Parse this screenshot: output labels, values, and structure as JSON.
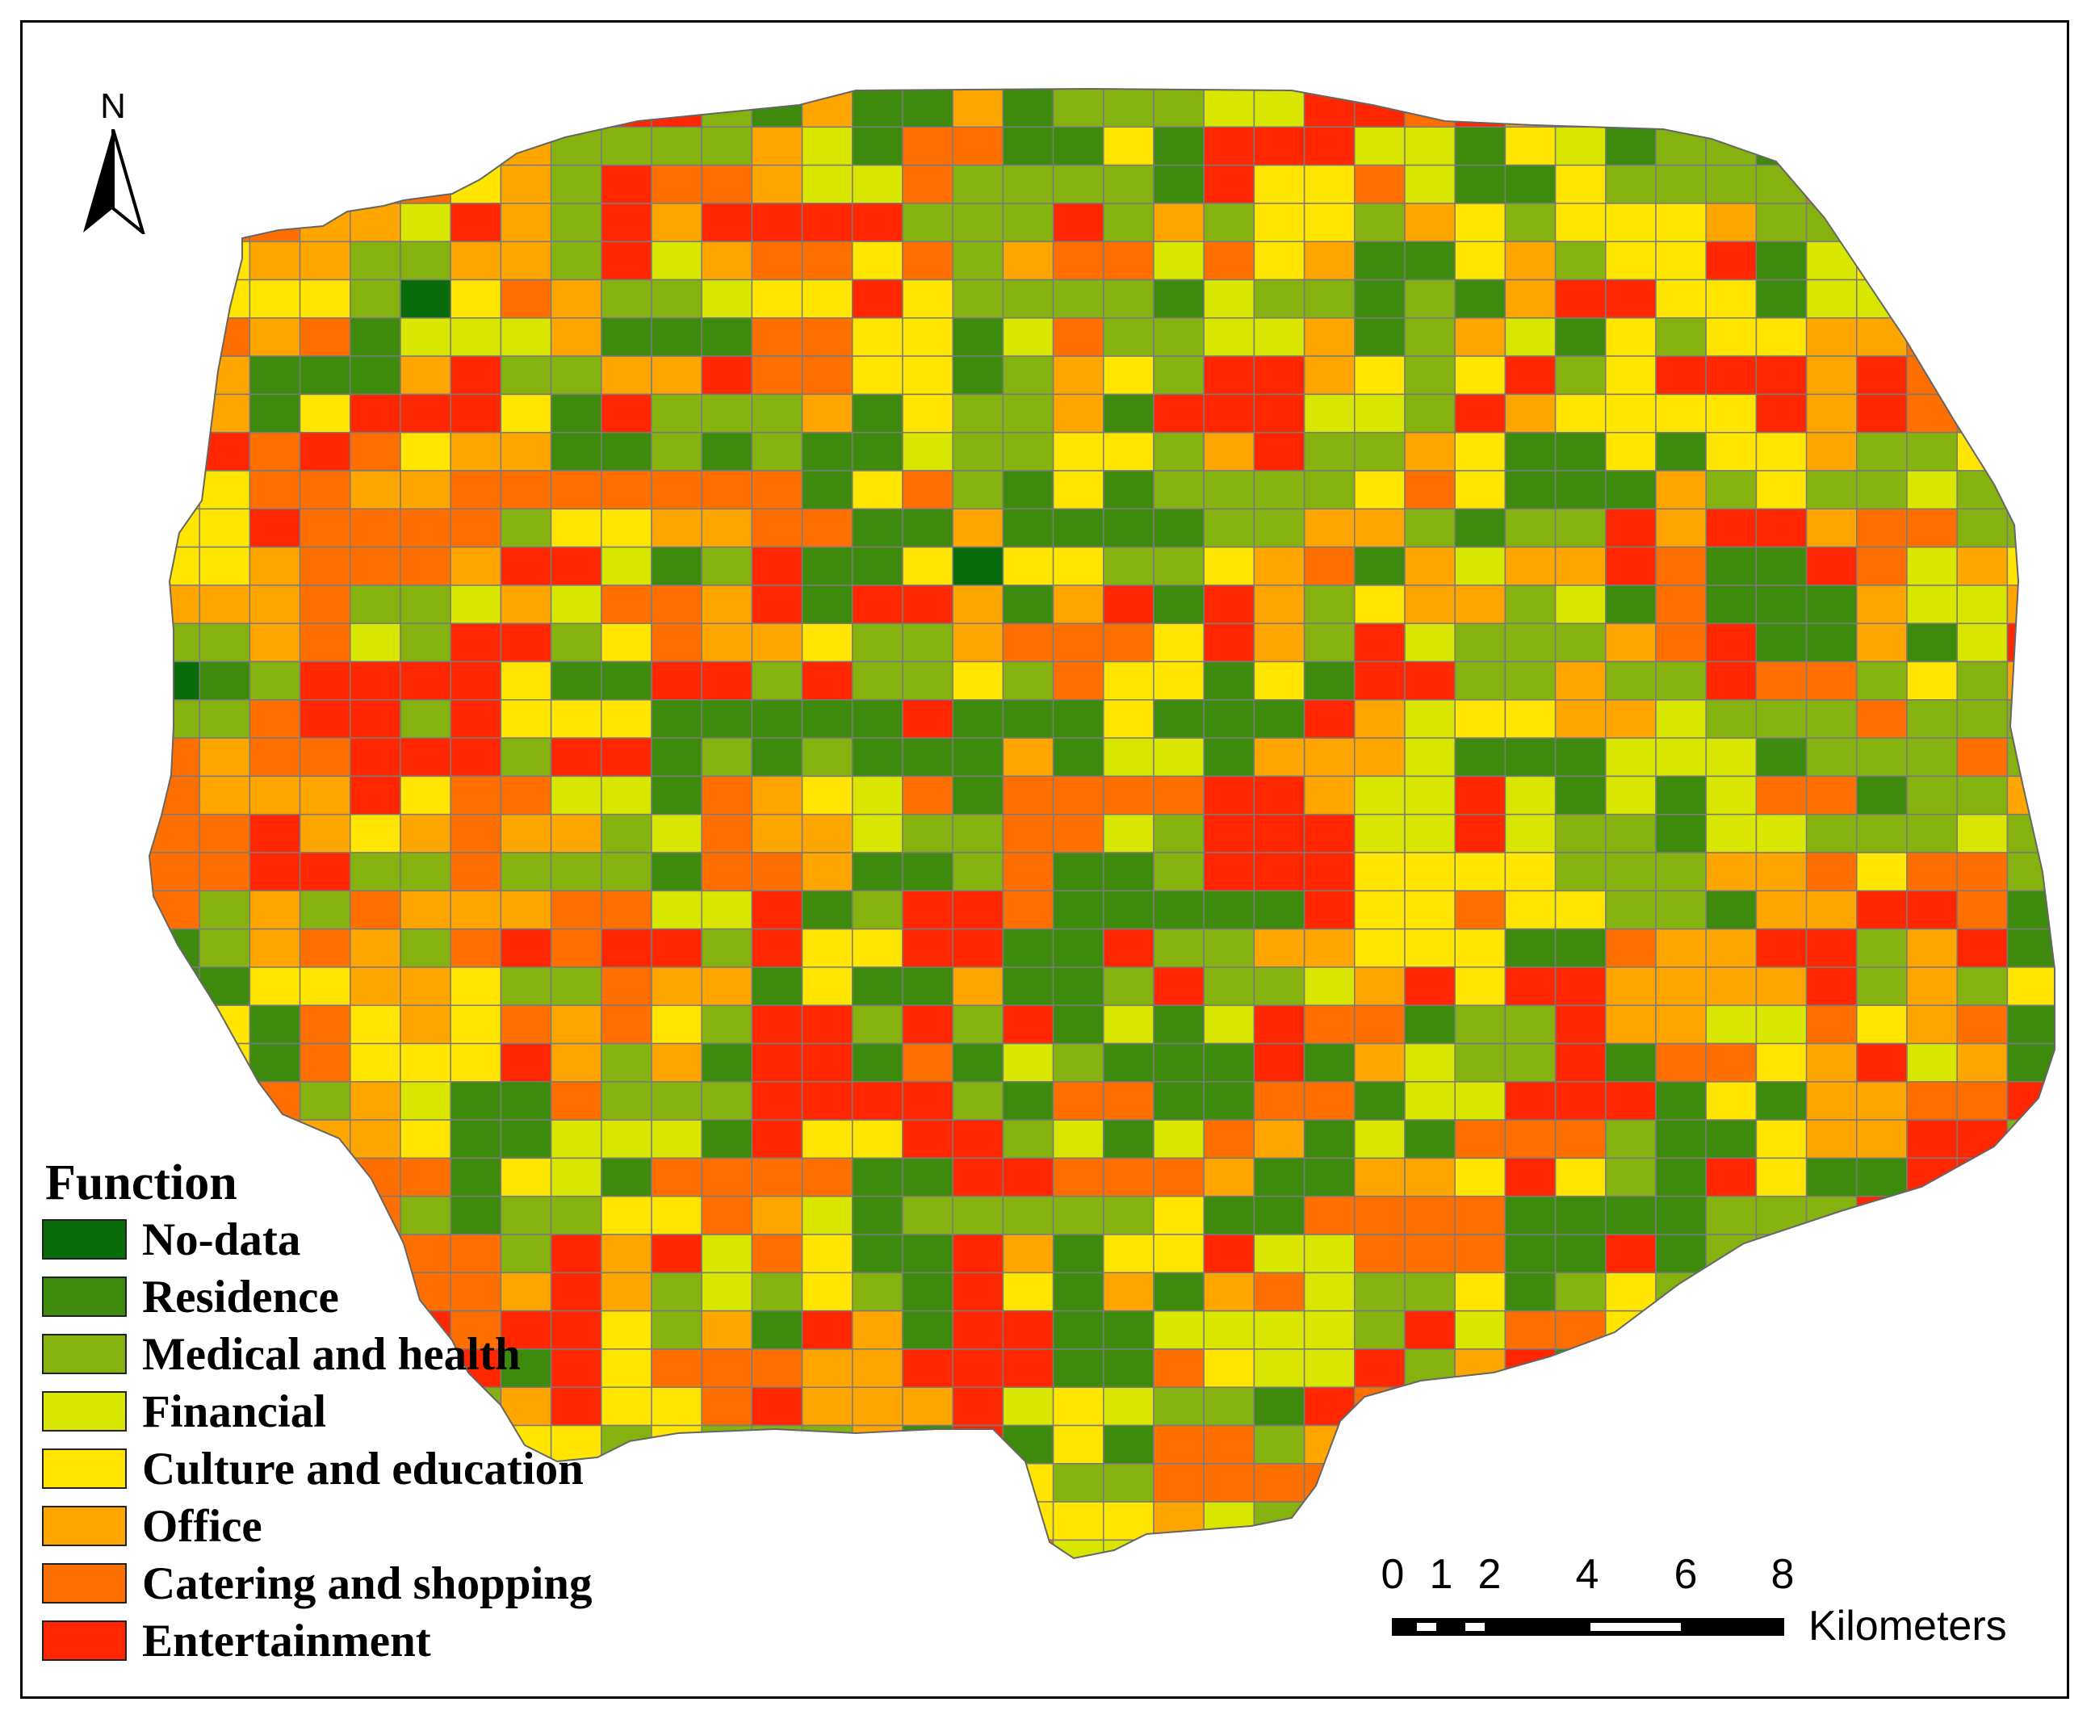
{
  "north_arrow": {
    "label": "N"
  },
  "legend": {
    "title": "Function",
    "items": [
      {
        "label": "No-data",
        "color": "#0a6b0a"
      },
      {
        "label": "Residence",
        "color": "#3e8a0c"
      },
      {
        "label": "Medical and health",
        "color": "#86b20f"
      },
      {
        "label": "Financial",
        "color": "#d8e600"
      },
      {
        "label": "Culture and education",
        "color": "#ffe500"
      },
      {
        "label": "Office",
        "color": "#ffa500"
      },
      {
        "label": "Catering and shopping",
        "color": "#ff6f00"
      },
      {
        "label": "Entertainment",
        "color": "#ff2600"
      }
    ]
  },
  "scale_bar": {
    "ticks": [
      "0",
      "1",
      "2",
      "4",
      "6",
      "8"
    ],
    "tick_values": [
      0,
      1,
      2,
      4,
      6,
      8
    ],
    "unit": "Kilometers"
  },
  "grid_colors": {
    "nodata": "#0a6b0a",
    "line": "#7a7a7a"
  }
}
